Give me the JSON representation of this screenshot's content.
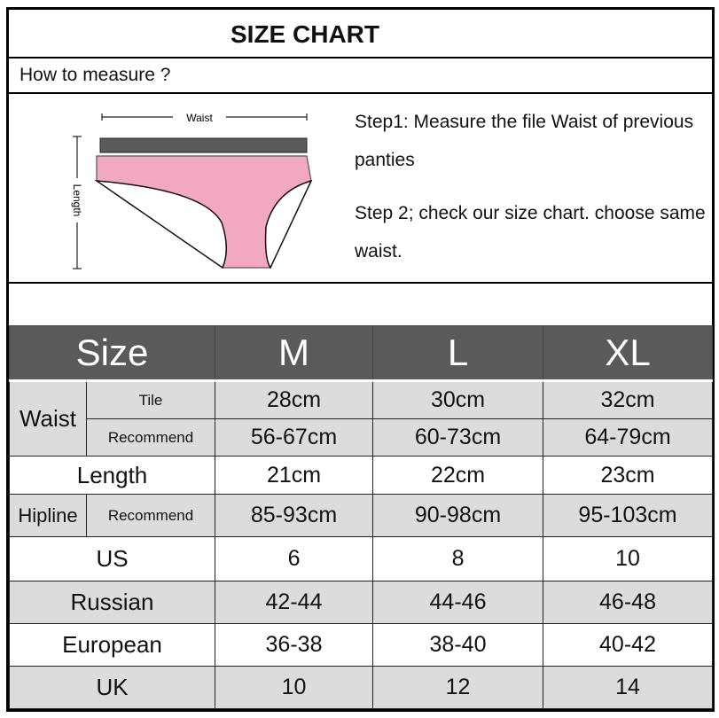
{
  "title": "SIZE CHART",
  "how_to_measure": "How to measure ?",
  "figure": {
    "waist_label": "Waist",
    "length_label": "Length",
    "band_color": "#5a5a5a",
    "body_color": "#f2a7c3"
  },
  "steps": [
    "Step1: Measure the file Waist of previous panties",
    "Step 2; check our size chart. choose same waist."
  ],
  "table": {
    "header": [
      "Size",
      "M",
      "L",
      "XL"
    ],
    "waist": {
      "label": "Waist",
      "tile": {
        "label": "Tile",
        "values": [
          "28cm",
          "30cm",
          "32cm"
        ]
      },
      "recommend": {
        "label": "Recommend",
        "values": [
          "56-67cm",
          "60-73cm",
          "64-79cm"
        ]
      }
    },
    "length": {
      "label": "Length",
      "values": [
        "21cm",
        "22cm",
        "23cm"
      ]
    },
    "hipline": {
      "label": "Hipline",
      "sub": "Recommend",
      "values": [
        "85-93cm",
        "90-98cm",
        "95-103cm"
      ]
    },
    "rows": [
      {
        "label": "US",
        "values": [
          "6",
          "8",
          "10"
        ]
      },
      {
        "label": "Russian",
        "values": [
          "42-44",
          "44-46",
          "46-48"
        ]
      },
      {
        "label": "European",
        "values": [
          "36-38",
          "38-40",
          "40-42"
        ]
      },
      {
        "label": "UK",
        "values": [
          "10",
          "12",
          "14"
        ]
      }
    ],
    "colors": {
      "header_bg": "#5a5a5a",
      "gray_row": "#dcdcdc"
    }
  }
}
